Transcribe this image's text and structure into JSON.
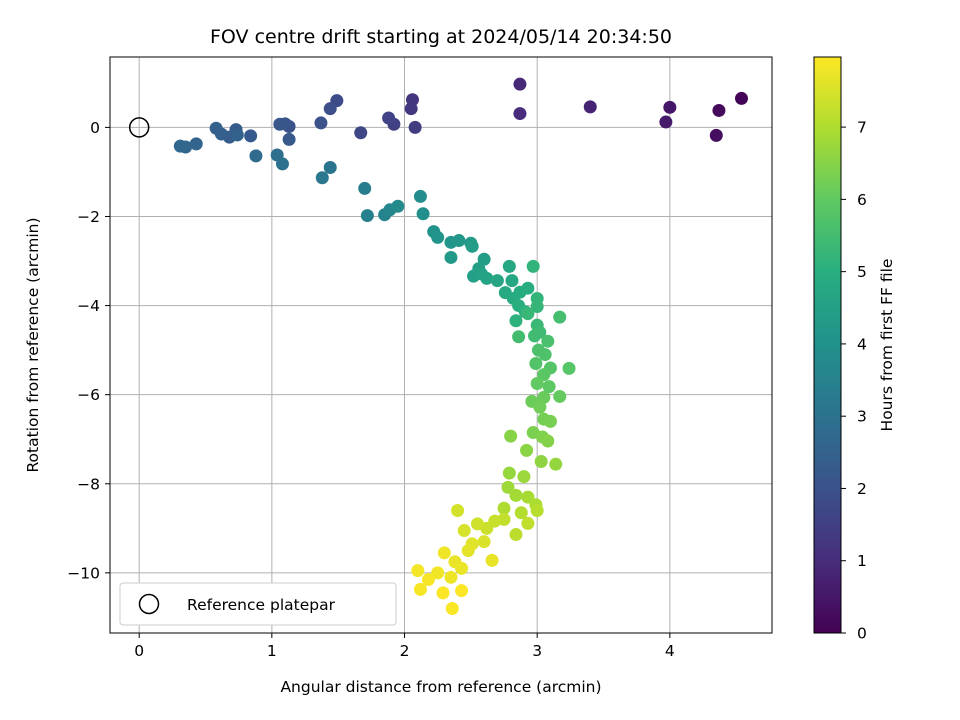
{
  "chart_data": {
    "type": "scatter",
    "title": "FOV centre drift starting at 2024/05/14 20:34:50",
    "xlabel": "Angular distance from reference (arcmin)",
    "ylabel": "Rotation from reference (arcmin)",
    "xlim": [
      -0.22,
      4.77
    ],
    "ylim": [
      -11.35,
      1.58
    ],
    "xticks": [
      0,
      1,
      2,
      3,
      4
    ],
    "yticks": [
      0,
      -2,
      -4,
      -6,
      -8,
      -10
    ],
    "grid": true,
    "colormap": "viridis",
    "colorbar": {
      "label": "Hours from first FF file",
      "range": [
        0,
        7.97
      ],
      "ticks": [
        0,
        1,
        2,
        3,
        4,
        5,
        6,
        7
      ]
    },
    "legend": {
      "position": "lower-left",
      "entries": [
        "Reference platepar"
      ]
    },
    "reference_point": {
      "label": "Reference platepar",
      "x": 0,
      "y": 0
    },
    "series": [
      {
        "points": [
          [
            4.54,
            0.65,
            0.1
          ],
          [
            4.37,
            0.38,
            0.2
          ],
          [
            4.35,
            -0.18,
            0.3
          ],
          [
            4.0,
            0.45,
            0.5
          ],
          [
            3.97,
            0.12,
            0.6
          ],
          [
            3.4,
            0.46,
            0.8
          ],
          [
            2.87,
            0.97,
            0.9
          ],
          [
            2.87,
            0.31,
            1.0
          ],
          [
            2.06,
            0.62,
            1.2
          ],
          [
            2.05,
            0.42,
            1.3
          ],
          [
            2.08,
            0.0,
            1.4
          ],
          [
            1.92,
            0.07,
            1.5
          ],
          [
            1.88,
            0.21,
            1.6
          ],
          [
            1.67,
            -0.12,
            1.7
          ],
          [
            1.49,
            0.6,
            1.8
          ],
          [
            1.44,
            0.42,
            1.9
          ],
          [
            1.37,
            0.1,
            2.0
          ],
          [
            1.13,
            0.02,
            2.05
          ],
          [
            1.1,
            0.08,
            2.1
          ],
          [
            1.06,
            0.07,
            2.15
          ],
          [
            1.13,
            -0.27,
            2.2
          ],
          [
            0.84,
            -0.19,
            2.25
          ],
          [
            0.73,
            -0.05,
            2.3
          ],
          [
            0.68,
            -0.22,
            2.35
          ],
          [
            0.62,
            -0.15,
            2.4
          ],
          [
            0.58,
            -0.02,
            2.45
          ],
          [
            0.74,
            -0.17,
            2.5
          ],
          [
            0.43,
            -0.37,
            2.55
          ],
          [
            0.35,
            -0.44,
            2.6
          ],
          [
            0.31,
            -0.42,
            2.65
          ],
          [
            0.88,
            -0.64,
            2.75
          ],
          [
            1.04,
            -0.62,
            2.85
          ],
          [
            1.08,
            -0.82,
            2.95
          ],
          [
            1.44,
            -0.9,
            3.05
          ],
          [
            1.38,
            -1.13,
            3.15
          ],
          [
            1.7,
            -1.37,
            3.35
          ],
          [
            1.72,
            -1.98,
            3.45
          ],
          [
            1.85,
            -1.96,
            3.55
          ],
          [
            1.89,
            -1.85,
            3.65
          ],
          [
            1.95,
            -1.77,
            3.75
          ],
          [
            2.12,
            -1.55,
            3.85
          ],
          [
            2.14,
            -1.94,
            3.95
          ],
          [
            2.22,
            -2.34,
            4.05
          ],
          [
            2.25,
            -2.47,
            4.1
          ],
          [
            2.35,
            -2.58,
            4.15
          ],
          [
            2.41,
            -2.54,
            4.2
          ],
          [
            2.35,
            -2.92,
            4.25
          ],
          [
            2.5,
            -2.6,
            4.3
          ],
          [
            2.51,
            -2.67,
            4.35
          ],
          [
            2.6,
            -2.96,
            4.4
          ],
          [
            2.56,
            -3.17,
            4.45
          ],
          [
            2.52,
            -3.34,
            4.5
          ],
          [
            2.58,
            -3.29,
            4.55
          ],
          [
            2.62,
            -3.39,
            4.6
          ],
          [
            2.7,
            -3.44,
            4.65
          ],
          [
            2.79,
            -3.12,
            4.7
          ],
          [
            2.81,
            -3.44,
            4.75
          ],
          [
            2.76,
            -3.71,
            4.8
          ],
          [
            2.82,
            -3.84,
            4.85
          ],
          [
            2.87,
            -3.7,
            4.9
          ],
          [
            2.93,
            -3.61,
            4.95
          ],
          [
            2.86,
            -4.0,
            5.0
          ],
          [
            2.91,
            -4.14,
            5.05
          ],
          [
            2.84,
            -4.34,
            5.1
          ],
          [
            2.97,
            -3.12,
            5.15
          ],
          [
            3.0,
            -3.84,
            5.2
          ],
          [
            3.0,
            -4.02,
            5.25
          ],
          [
            2.93,
            -4.18,
            5.3
          ],
          [
            3.0,
            -4.44,
            5.35
          ],
          [
            3.02,
            -4.6,
            5.4
          ],
          [
            2.98,
            -4.68,
            5.45
          ],
          [
            2.86,
            -4.7,
            5.5
          ],
          [
            3.17,
            -4.26,
            5.55
          ],
          [
            3.08,
            -4.8,
            5.6
          ],
          [
            3.01,
            -5.0,
            5.65
          ],
          [
            3.06,
            -5.1,
            5.7
          ],
          [
            2.99,
            -5.3,
            5.75
          ],
          [
            3.1,
            -5.4,
            5.8
          ],
          [
            3.24,
            -5.41,
            5.85
          ],
          [
            3.05,
            -5.55,
            5.9
          ],
          [
            3.09,
            -5.82,
            5.95
          ],
          [
            3.0,
            -5.75,
            6.0
          ],
          [
            3.17,
            -6.04,
            6.05
          ],
          [
            3.05,
            -6.06,
            6.1
          ],
          [
            2.96,
            -6.15,
            6.15
          ],
          [
            3.02,
            -6.28,
            6.2
          ],
          [
            3.05,
            -6.55,
            6.25
          ],
          [
            3.1,
            -6.6,
            6.3
          ],
          [
            2.97,
            -6.85,
            6.35
          ],
          [
            3.04,
            -6.95,
            6.4
          ],
          [
            3.08,
            -7.04,
            6.45
          ],
          [
            2.8,
            -6.93,
            6.5
          ],
          [
            2.92,
            -7.25,
            6.55
          ],
          [
            3.03,
            -7.5,
            6.6
          ],
          [
            3.14,
            -7.56,
            6.65
          ],
          [
            2.79,
            -7.76,
            6.7
          ],
          [
            2.9,
            -7.84,
            6.75
          ],
          [
            2.78,
            -8.08,
            6.8
          ],
          [
            2.84,
            -8.26,
            6.85
          ],
          [
            2.93,
            -8.3,
            6.9
          ],
          [
            2.99,
            -8.47,
            6.95
          ],
          [
            2.75,
            -8.55,
            7.0
          ],
          [
            2.88,
            -8.65,
            7.05
          ],
          [
            3.0,
            -8.6,
            7.1
          ],
          [
            2.84,
            -9.14,
            7.15
          ],
          [
            2.93,
            -8.89,
            7.2
          ],
          [
            2.75,
            -8.8,
            7.25
          ],
          [
            2.68,
            -8.84,
            7.3
          ],
          [
            2.62,
            -9.0,
            7.35
          ],
          [
            2.55,
            -8.9,
            7.4
          ],
          [
            2.4,
            -8.6,
            7.45
          ],
          [
            2.45,
            -9.05,
            7.5
          ],
          [
            2.6,
            -9.3,
            7.55
          ],
          [
            2.51,
            -9.35,
            7.6
          ],
          [
            2.48,
            -9.5,
            7.65
          ],
          [
            2.66,
            -9.72,
            7.7
          ],
          [
            2.38,
            -9.75,
            7.72
          ],
          [
            2.43,
            -9.9,
            7.75
          ],
          [
            2.3,
            -9.55,
            7.78
          ],
          [
            2.35,
            -10.1,
            7.8
          ],
          [
            2.25,
            -10.0,
            7.82
          ],
          [
            2.1,
            -9.95,
            7.85
          ],
          [
            2.12,
            -10.37,
            7.88
          ],
          [
            2.18,
            -10.15,
            7.9
          ],
          [
            2.36,
            -10.8,
            7.92
          ],
          [
            2.29,
            -10.45,
            7.94
          ],
          [
            2.43,
            -10.4,
            7.95
          ]
        ]
      }
    ]
  }
}
